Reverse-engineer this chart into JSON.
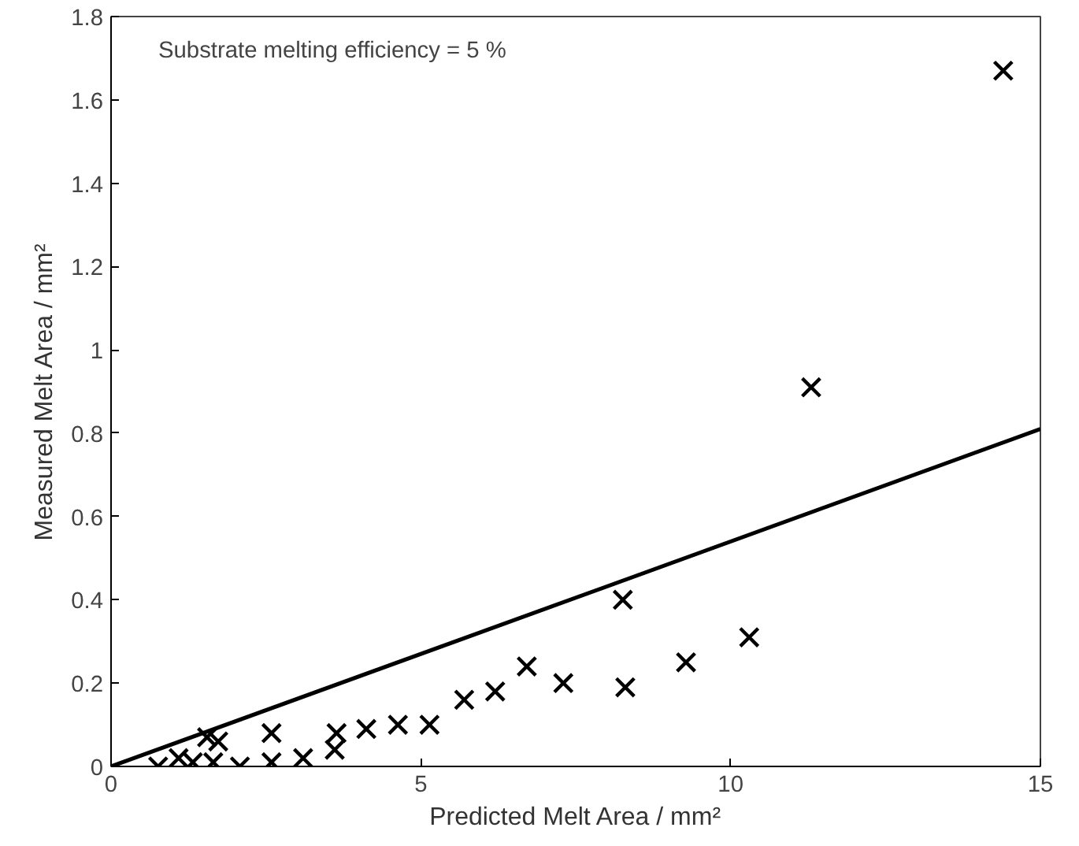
{
  "chart_data": {
    "type": "scatter",
    "xlabel": "Predicted Melt Area / mm²",
    "ylabel": "Measured Melt Area / mm²",
    "xlim": [
      0,
      15
    ],
    "ylim": [
      0,
      1.8
    ],
    "xticks": [
      0,
      5,
      10,
      15
    ],
    "yticks": [
      0,
      0.2,
      0.4,
      0.6,
      0.8,
      {
        "value": 1,
        "label": "1"
      },
      1.2,
      1.4,
      1.6,
      1.8
    ],
    "grid": false,
    "annotations": [
      "Substrate melting efficiency = 5 %"
    ],
    "series": [
      {
        "marker": "cross",
        "color": "#000000",
        "x": [
          0.76,
          1.09,
          1.32,
          1.55,
          1.73,
          1.65,
          2.08,
          2.59,
          2.59,
          3.1,
          3.61,
          3.64,
          4.12,
          4.63,
          5.14,
          5.7,
          6.2,
          6.71,
          7.3,
          8.26,
          8.3,
          9.28,
          10.3,
          11.3,
          14.4
        ],
        "values": [
          0.0,
          0.02,
          0.01,
          0.07,
          0.06,
          0.01,
          0.0,
          0.08,
          0.01,
          0.02,
          0.04,
          0.08,
          0.09,
          0.1,
          0.1,
          0.16,
          0.18,
          0.24,
          0.2,
          0.4,
          0.19,
          0.25,
          0.31,
          0.91,
          1.67
        ]
      },
      {
        "type": "line",
        "marker": "none",
        "color": "#000000",
        "x": [
          0,
          15
        ],
        "values": [
          0,
          0.81
        ]
      }
    ]
  }
}
